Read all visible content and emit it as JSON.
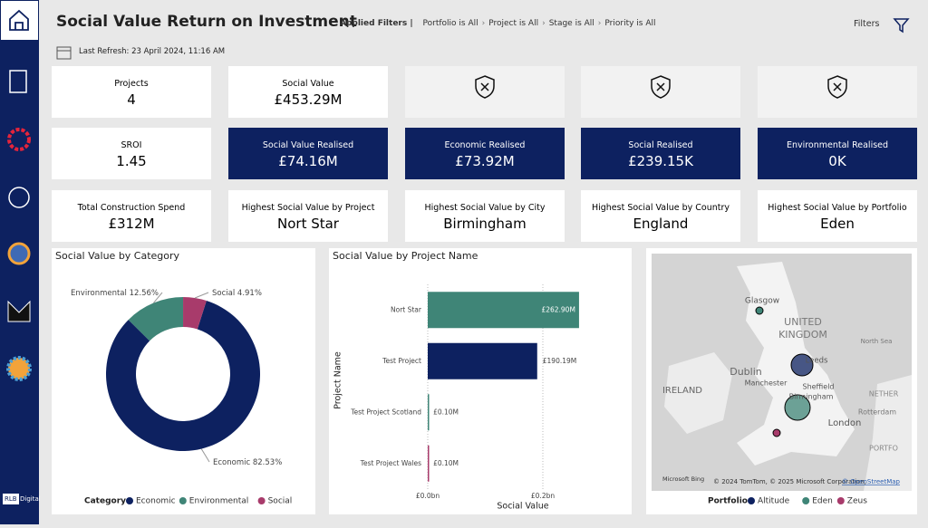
{
  "header": {
    "title": "Social Value Return on Investment",
    "filters_label": "Applied Filters |",
    "filters": [
      "Portfolio is All",
      "Project is All",
      "Stage is All",
      "Priority is All"
    ],
    "filters_button": "Filters",
    "last_refresh": "Last Refresh: 23 April 2024, 11:16 AM"
  },
  "sidebar": {
    "brand": [
      "RLB",
      "Digital"
    ]
  },
  "cards": [
    {
      "label": "Projects",
      "value": "4"
    },
    {
      "label": "Social Value",
      "value": "£453.29M"
    },
    {
      "label": "SROI",
      "value": "1.45"
    },
    {
      "label": "Social Value Realised",
      "value": "£74.16M"
    },
    {
      "label": "Economic Realised",
      "value": "£73.92M"
    },
    {
      "label": "Social Realised",
      "value": "£239.15K"
    },
    {
      "label": "Environmental Realised",
      "value": "0K"
    },
    {
      "label": "Total Construction Spend",
      "value": "£312M"
    },
    {
      "label": "Highest Social Value by Project",
      "value": "Nort Star"
    },
    {
      "label": "Highest Social Value by City",
      "value": "Birmingham"
    },
    {
      "label": "Highest Social Value by Country",
      "value": "England"
    },
    {
      "label": "Highest Social Value by Portfolio",
      "value": "Eden"
    }
  ],
  "chart_data": [
    {
      "type": "donut",
      "title": "Social Value by Category",
      "legend_title": "Category",
      "categories": [
        "Economic",
        "Environmental",
        "Social"
      ],
      "values": [
        82.53,
        12.56,
        4.91
      ],
      "value_labels": [
        "82.53%",
        "12.56%",
        "4.91%"
      ],
      "colors": [
        "#0d2160",
        "#3f8577",
        "#a83b6b"
      ]
    },
    {
      "type": "hbar",
      "title": "Social Value by Project Name",
      "x_label": "Social Value",
      "y_label": "Project Name",
      "categories": [
        "Nort Star",
        "Test Project",
        "Test Project Scotland",
        "Test Project Wales"
      ],
      "values": [
        0.2629,
        0.19019,
        0.0001,
        0.0001
      ],
      "value_labels": [
        "£262.90M",
        "£190.19M",
        "£0.10M",
        "£0.10M"
      ],
      "colors": [
        "#3f8577",
        "#0d2160",
        "#3f8577",
        "#a83b6b"
      ],
      "xlim": [
        0,
        0.34
      ],
      "xticks": [
        {
          "value": 0,
          "label": "£0.0bn"
        },
        {
          "value": 0.2,
          "label": "£0.2bn"
        }
      ],
      "grid": true
    }
  ],
  "map": {
    "labels": [
      "Glasgow",
      "UNITED",
      "KINGDOM",
      "North Sea",
      "Leeds",
      "Dublin",
      "Sheffield",
      "Manchester",
      "IRELAND",
      "Birmingham",
      "NETHER",
      "Rotterdam",
      "London",
      "PORTFO"
    ],
    "attribution": [
      "Microsoft Bing",
      "© 2024 TomTom, © 2025 Microsoft Corporation,",
      "© OpenStreetMap"
    ],
    "legend_title": "Portfolio",
    "legend": [
      {
        "name": "Altitude",
        "color": "#0d2160"
      },
      {
        "name": "Eden",
        "color": "#3f8577"
      },
      {
        "name": "Zeus",
        "color": "#a83b6b"
      }
    ]
  }
}
